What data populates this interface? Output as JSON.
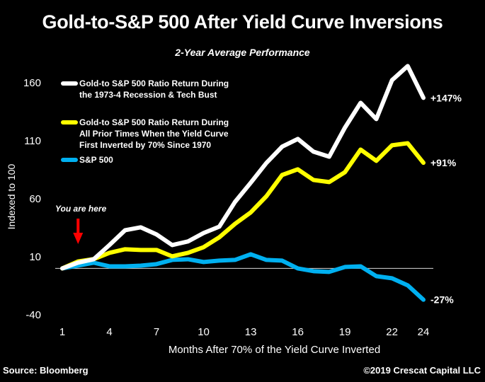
{
  "chart_data": {
    "type": "line",
    "title": "Gold-to-S&P 500 After Yield Curve Inversions",
    "subtitle": "2-Year Average Performance",
    "xlabel": "Months After 70% of the Yield Curve Inverted",
    "ylabel": "Indexed to 100",
    "x": [
      1,
      2,
      3,
      4,
      5,
      6,
      7,
      8,
      9,
      10,
      11,
      12,
      13,
      14,
      15,
      16,
      17,
      18,
      19,
      20,
      21,
      22,
      23,
      24
    ],
    "x_tick_labels": [
      "1",
      "4",
      "7",
      "10",
      "13",
      "16",
      "19",
      "22",
      "24"
    ],
    "x_ticks": [
      1,
      4,
      7,
      10,
      13,
      16,
      19,
      22,
      24
    ],
    "y_tick_labels": [
      "160",
      "110",
      "60",
      "10",
      "-40"
    ],
    "y_ticks": [
      160,
      110,
      60,
      10,
      -40
    ],
    "ylim": [
      -40,
      160
    ],
    "xlim": [
      1,
      24
    ],
    "baseline": 0,
    "grid": false,
    "legend_position": "top-left",
    "series": [
      {
        "name": "Gold-to S&P 500 Ratio Return During the 1973-4 Recession & Tech Bust",
        "legend_lines": [
          "Gold-to S&P 500 Ratio Return During",
          "the 1973-4 Recession & Tech Bust"
        ],
        "color": "#ffffff",
        "end_label": "+147%",
        "values": [
          0,
          4.9,
          7.9,
          20.1,
          32.9,
          35.4,
          29.3,
          20.1,
          23.2,
          30.5,
          36,
          57.3,
          73.8,
          90.9,
          104.9,
          111.6,
          100.6,
          96.3,
          121.3,
          142.7,
          128.7,
          162.2,
          174.4,
          147
        ]
      },
      {
        "name": "Gold-to S&P 500 Ratio Return During All Prior Times When the Yield Curve First Inverted by 70% Since 1970",
        "legend_lines": [
          "Gold-to S&P 500 Ratio Return During",
          "All Prior Times When the Yield Curve",
          "First Inverted by 70% Since 1970"
        ],
        "color": "#ffff00",
        "end_label": "+91%",
        "values": [
          0,
          6,
          8,
          13.4,
          16.5,
          15.9,
          15.9,
          10.4,
          13.4,
          18.3,
          26.8,
          38.4,
          48.2,
          62.2,
          80.5,
          85.4,
          76.2,
          74.4,
          82.9,
          102.4,
          92.7,
          106.1,
          107.9,
          91
        ]
      },
      {
        "name": "S&P 500",
        "legend_lines": [
          "S&P 500"
        ],
        "color": "#00b0f0",
        "end_label": "-27%",
        "values": [
          0,
          2.4,
          4.9,
          1.8,
          1.8,
          2.4,
          3.7,
          7.3,
          7.9,
          5.5,
          6.7,
          7.3,
          12.2,
          7.3,
          6.7,
          0,
          -2.4,
          -3,
          1.2,
          1.8,
          -6.7,
          -8.5,
          -14.6,
          -27
        ]
      }
    ],
    "annotations": [
      {
        "text": "You are here",
        "x": 2.5,
        "arrow_color": "#ff0000"
      }
    ]
  },
  "footer": {
    "source": "Source: Bloomberg",
    "copyright": "©2019 Crescat Capital LLC"
  }
}
